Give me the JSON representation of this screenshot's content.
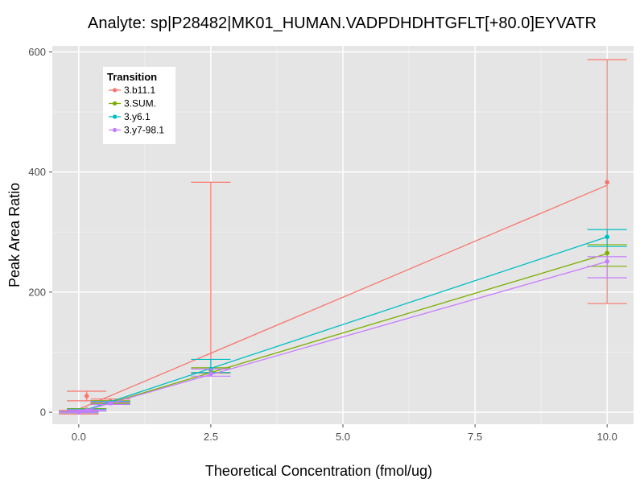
{
  "chart_data": {
    "type": "line",
    "title": "Analyte: sp|P28482|MK01_HUMAN.VADPDHDHTGFLT[+80.0]EYVATR",
    "xlabel": "Theoretical Concentration (fmol/ug)",
    "ylabel": "Peak Area Ratio",
    "xlim": [
      -0.5,
      10.5
    ],
    "ylim": [
      -20,
      610
    ],
    "x_ticks": [
      0,
      2.5,
      5,
      7.5,
      10
    ],
    "x_tick_labels": [
      "0.0",
      "2.5",
      "5.0",
      "7.5",
      "10.0"
    ],
    "y_ticks": [
      0,
      200,
      400,
      600
    ],
    "y_tick_labels": [
      "0",
      "200",
      "400",
      "600"
    ],
    "grid": true,
    "background": "#e5e5e5",
    "legend": {
      "title": "Transition",
      "position": "top-left"
    },
    "series": [
      {
        "name": "3.b11.1",
        "color": "#f8766d",
        "fit": [
          [
            0,
            5
          ],
          [
            10,
            378
          ]
        ],
        "points": [
          {
            "x": 0,
            "y": 0,
            "lo": -3,
            "hi": 3
          },
          {
            "x": 0.15,
            "y": 27,
            "lo": 19,
            "hi": 35
          },
          {
            "x": 0.6,
            "y": 18,
            "lo": 15,
            "hi": 22
          },
          {
            "x": 2.5,
            "y": 71,
            "lo": 65,
            "hi": 383
          },
          {
            "x": 10,
            "y": 383,
            "lo": 181,
            "hi": 587
          }
        ]
      },
      {
        "name": "3.SUM.",
        "color": "#7cae00",
        "fit": [
          [
            0,
            0
          ],
          [
            10,
            264
          ]
        ],
        "points": [
          {
            "x": 0,
            "y": 0,
            "lo": -1,
            "hi": 1
          },
          {
            "x": 0.15,
            "y": 4,
            "lo": 2,
            "hi": 6
          },
          {
            "x": 0.6,
            "y": 17,
            "lo": 15,
            "hi": 19
          },
          {
            "x": 2.5,
            "y": 70,
            "lo": 66,
            "hi": 74
          },
          {
            "x": 10,
            "y": 265,
            "lo": 243,
            "hi": 279
          }
        ]
      },
      {
        "name": "3.y6.1",
        "color": "#00bfc4",
        "fit": [
          [
            0,
            0
          ],
          [
            10,
            292
          ]
        ],
        "points": [
          {
            "x": 0,
            "y": 0,
            "lo": -1,
            "hi": 1
          },
          {
            "x": 0.15,
            "y": 3,
            "lo": 2,
            "hi": 5
          },
          {
            "x": 0.6,
            "y": 16,
            "lo": 13,
            "hi": 18
          },
          {
            "x": 2.5,
            "y": 72,
            "lo": 66,
            "hi": 88
          },
          {
            "x": 10,
            "y": 292,
            "lo": 276,
            "hi": 304
          }
        ]
      },
      {
        "name": "3.y7-98.1",
        "color": "#c77cff",
        "fit": [
          [
            0,
            0
          ],
          [
            10,
            251
          ]
        ],
        "points": [
          {
            "x": 0,
            "y": 0,
            "lo": -1,
            "hi": 1
          },
          {
            "x": 0.15,
            "y": 3,
            "lo": 2,
            "hi": 4
          },
          {
            "x": 0.6,
            "y": 15,
            "lo": 13,
            "hi": 17
          },
          {
            "x": 2.5,
            "y": 64,
            "lo": 60,
            "hi": 72
          },
          {
            "x": 10,
            "y": 251,
            "lo": 224,
            "hi": 259
          }
        ]
      }
    ]
  }
}
